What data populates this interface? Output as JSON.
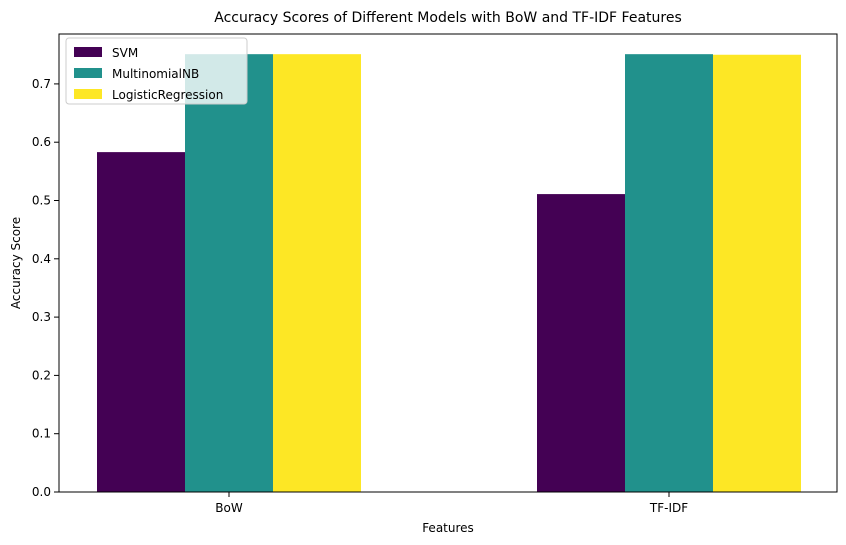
{
  "chart_data": {
    "type": "bar",
    "title": "Accuracy Scores of Different Models with BoW and TF-IDF Features",
    "xlabel": "Features",
    "ylabel": "Accuracy Score",
    "categories": [
      "BoW",
      "TF-IDF"
    ],
    "series": [
      {
        "name": "SVM",
        "color": "#440154",
        "values": [
          0.583,
          0.511
        ]
      },
      {
        "name": "MultinomialNB",
        "color": "#21918c",
        "values": [
          0.751,
          0.751
        ]
      },
      {
        "name": "LogisticRegression",
        "color": "#fde725",
        "values": [
          0.751,
          0.75
        ]
      }
    ],
    "ylim": [
      0,
      0.75
    ],
    "yticks": [
      "0.0",
      "0.1",
      "0.2",
      "0.3",
      "0.4",
      "0.5",
      "0.6",
      "0.7"
    ],
    "legend_position": "top-left",
    "grid": false
  }
}
